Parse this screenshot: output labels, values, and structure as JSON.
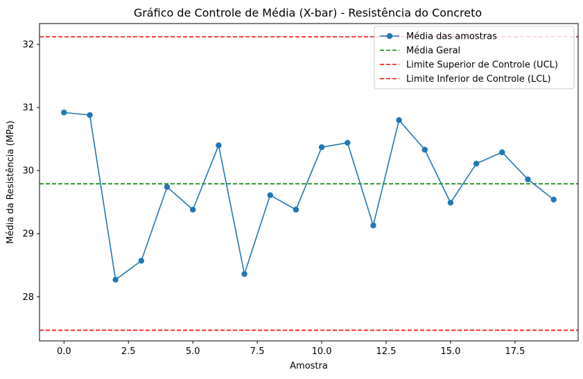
{
  "chart_data": {
    "type": "line",
    "title": "Gráfico de Controle de Média (X-bar) - Resistência do Concreto",
    "xlabel": "Amostra",
    "ylabel": "Média da Resistência (MPa)",
    "xlim": [
      -0.95,
      19.95
    ],
    "ylim": [
      27.3,
      32.33
    ],
    "x_ticks": [
      0.0,
      2.5,
      5.0,
      7.5,
      10.0,
      12.5,
      15.0,
      17.5
    ],
    "x_tick_labels": [
      "0.0",
      "2.5",
      "5.0",
      "7.5",
      "10.0",
      "12.5",
      "15.0",
      "17.5"
    ],
    "y_ticks": [
      28,
      29,
      30,
      31,
      32
    ],
    "y_tick_labels": [
      "28",
      "29",
      "30",
      "31",
      "32"
    ],
    "grid": false,
    "legend_position": "top-right",
    "series": [
      {
        "name": "Média das amostras",
        "color": "#1f77b4",
        "style": "solid-marker",
        "x": [
          0,
          1,
          2,
          3,
          4,
          5,
          6,
          7,
          8,
          9,
          10,
          11,
          12,
          13,
          14,
          15,
          16,
          17,
          18,
          19
        ],
        "values": [
          30.92,
          30.88,
          28.27,
          28.57,
          29.74,
          29.38,
          30.4,
          28.36,
          29.61,
          29.38,
          30.37,
          30.44,
          29.13,
          30.8,
          30.33,
          29.49,
          30.11,
          30.29,
          29.86,
          29.54
        ]
      }
    ],
    "hlines": [
      {
        "name": "Média Geral",
        "value": 29.79,
        "color": "#008000"
      },
      {
        "name": "Limite Superior de Controle (UCL)",
        "value": 32.12,
        "color": "#ff0000"
      },
      {
        "name": "Limite Inferior de Controle (LCL)",
        "value": 27.47,
        "color": "#ff0000"
      }
    ]
  }
}
